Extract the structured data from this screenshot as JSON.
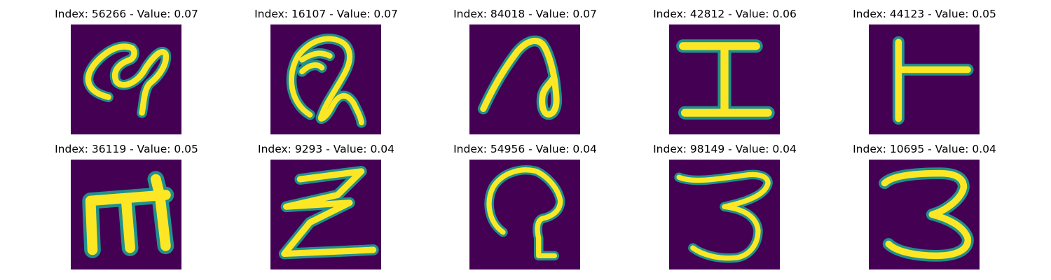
{
  "colors": {
    "background": "#440154",
    "stroke_core": "#fde725",
    "stroke_edge": "#21908d",
    "stroke_mid": "#5ec962"
  },
  "panels": [
    {
      "title": "Index: 56266 - Value: 0.07",
      "glyph": "handwritten-a-like"
    },
    {
      "title": "Index: 16107 - Value: 0.07",
      "glyph": "handwritten-Q-like"
    },
    {
      "title": "Index: 84018 - Value: 0.07",
      "glyph": "handwritten-n-like"
    },
    {
      "title": "Index: 42812 - Value: 0.06",
      "glyph": "handwritten-I"
    },
    {
      "title": "Index: 44123 - Value: 0.05",
      "glyph": "handwritten-T-like"
    },
    {
      "title": "Index: 36119 - Value: 0.05",
      "glyph": "handwritten-m"
    },
    {
      "title": "Index: 9293 - Value: 0.04",
      "glyph": "handwritten-Z-like"
    },
    {
      "title": "Index: 54956 - Value: 0.04",
      "glyph": "handwritten-a-like"
    },
    {
      "title": "Index: 98149 - Value: 0.04",
      "glyph": "handwritten-3"
    },
    {
      "title": "Index: 10695 - Value: 0.04",
      "glyph": "handwritten-3"
    }
  ]
}
